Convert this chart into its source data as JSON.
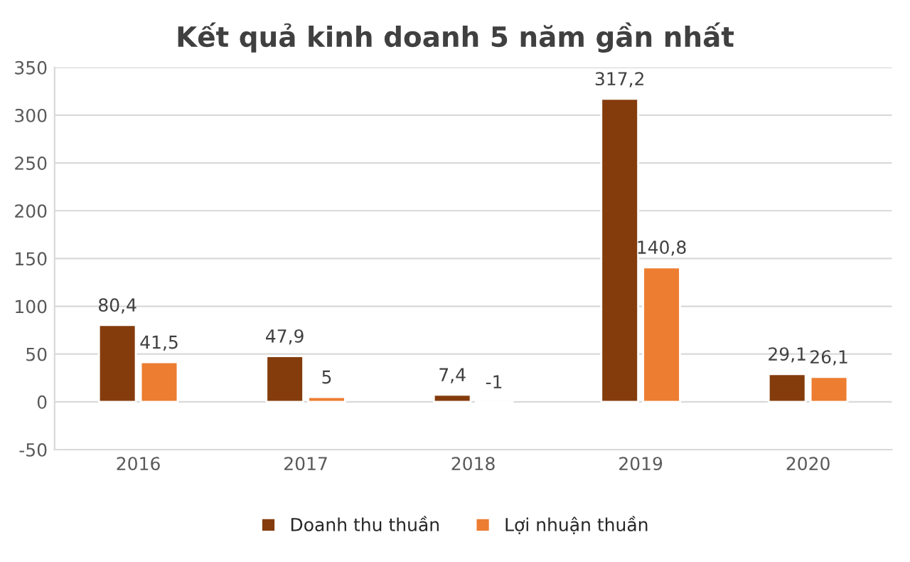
{
  "chart_data": {
    "type": "bar",
    "title": "Kết quả kinh doanh 5 năm gần nhất",
    "categories": [
      "2016",
      "2017",
      "2018",
      "2019",
      "2020"
    ],
    "series": [
      {
        "name": "Doanh thu thuần",
        "color": "#843c0c",
        "values": [
          80.4,
          47.9,
          7.4,
          317.2,
          29.1
        ],
        "value_labels": [
          "80,4",
          "47,9",
          "7,4",
          "317,2",
          "29,1"
        ]
      },
      {
        "name": "Lợi nhuận thuần",
        "color": "#ed7d31",
        "values": [
          41.5,
          5,
          -1,
          140.8,
          26.1
        ],
        "value_labels": [
          "41,5",
          "5",
          "-1",
          "140,8",
          "26,1"
        ]
      }
    ],
    "ylim": [
      -50,
      350
    ],
    "yticks": [
      -50,
      0,
      50,
      100,
      150,
      200,
      250,
      300,
      350
    ],
    "grid": "y",
    "legend": "bottom"
  }
}
